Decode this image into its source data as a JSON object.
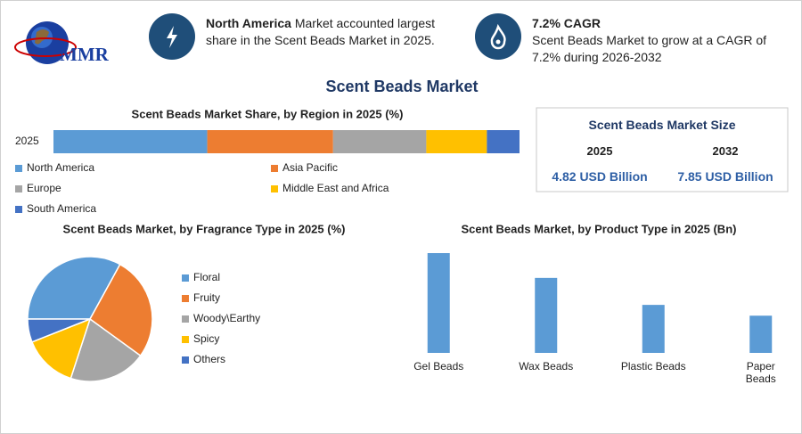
{
  "header": {
    "logo_text": "MMR",
    "highlights": [
      {
        "bold": "North America",
        "text": "Market accounted largest share in the Scent Beads Market in 2025."
      },
      {
        "bold": "7.2% CAGR",
        "text": "Scent Beads Market to grow at a CAGR of 7.2% during 2026-2032"
      }
    ]
  },
  "title": "Scent Beads Market",
  "market_size": {
    "title": "Scent Beads Market Size",
    "years": [
      "2025",
      "2032"
    ],
    "values": [
      "4.82 USD Billion",
      "7.85 USD Billion"
    ]
  },
  "chart_data": [
    {
      "type": "stacked-bar",
      "title": "Scent Beads Market Share, by Region in 2025 (%)",
      "categories": [
        "2025"
      ],
      "series": [
        {
          "name": "North America",
          "color": "#5b9bd5",
          "values": [
            33
          ]
        },
        {
          "name": "Asia Pacific",
          "color": "#ed7d31",
          "values": [
            27
          ]
        },
        {
          "name": "Europe",
          "color": "#a5a5a5",
          "values": [
            20
          ]
        },
        {
          "name": "Middle East and Africa",
          "color": "#ffc000",
          "values": [
            13
          ]
        },
        {
          "name": "South America",
          "color": "#4472c4",
          "values": [
            7
          ]
        }
      ]
    },
    {
      "type": "pie",
      "title": "Scent Beads Market, by Fragrance Type in 2025 (%)",
      "categories": [
        "Floral",
        "Fruity",
        "Woody\\Earthy",
        "Spicy",
        "Others"
      ],
      "values": [
        33,
        27,
        20,
        14,
        6
      ],
      "colors": [
        "#5b9bd5",
        "#ed7d31",
        "#a5a5a5",
        "#ffc000",
        "#4472c4"
      ]
    },
    {
      "type": "bar",
      "title": "Scent Beads Market, by Product Type in 2025 (Bn)",
      "categories": [
        "Gel Beads",
        "Wax Beads",
        "Plastic Beads",
        "Paper Beads"
      ],
      "values": [
        1.85,
        1.39,
        0.89,
        0.69
      ],
      "color": "#5b9bd5"
    }
  ]
}
